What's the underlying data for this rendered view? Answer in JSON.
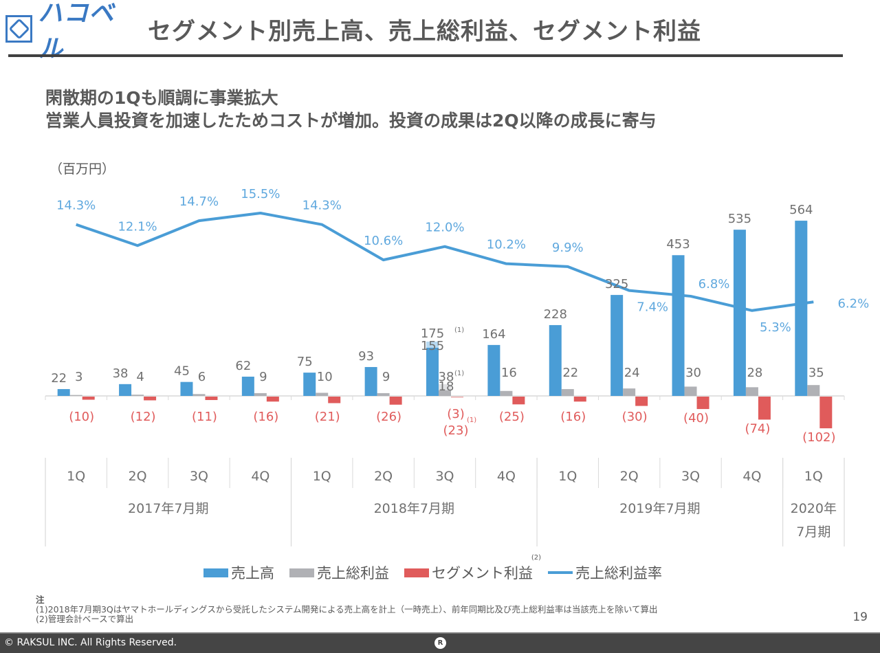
{
  "header": {
    "logo_text": "ハコベル",
    "title": "セグメント別売上高、売上総利益、セグメント利益"
  },
  "headline": {
    "line1": "閑散期の1Qも順調に事業拡大",
    "line2": "営業人員投資を加速したためコストが増加。投資の成果は2Q以降の成長に寄与"
  },
  "colors": {
    "revenue": "#4a9dd6",
    "revenue_onetime": "#b7d9f1",
    "gross_profit": "#b0b1b5",
    "gross_profit_onetime": "#e1e2e4",
    "segment_profit": "#e05b5b",
    "segment_profit_onetime": "#eaa2a2",
    "margin_line": "#4a9dd6",
    "margin_label": "#5fa8de",
    "value_label": "#707070",
    "negative_label": "#e05b5b"
  },
  "chart_data": {
    "type": "bar",
    "unit_label": "（百万円）",
    "categories": [
      "1Q",
      "2Q",
      "3Q",
      "4Q",
      "1Q",
      "2Q",
      "3Q",
      "4Q",
      "1Q",
      "2Q",
      "3Q",
      "4Q",
      "1Q"
    ],
    "fiscal_years": [
      {
        "label": "2017年7月期",
        "quarters": 4
      },
      {
        "label": "2018年7月期",
        "quarters": 4
      },
      {
        "label": "2019年7月期",
        "quarters": 4
      },
      {
        "label": "2020年\n7月期",
        "quarters": 1
      }
    ],
    "series": [
      {
        "name": "売上高",
        "kind": "bar",
        "values": [
          22,
          38,
          45,
          62,
          75,
          93,
          155,
          164,
          228,
          325,
          453,
          535,
          564
        ],
        "labels": [
          "22",
          "38",
          "45",
          "62",
          "75",
          "93",
          "155",
          "164",
          "228",
          "325",
          "453",
          "535",
          "564"
        ]
      },
      {
        "name": "売上総利益",
        "kind": "bar",
        "values": [
          3,
          4,
          6,
          9,
          10,
          9,
          18,
          16,
          22,
          24,
          30,
          28,
          35
        ],
        "labels": [
          "3",
          "4",
          "6",
          "9",
          "10",
          "9",
          "18",
          "16",
          "22",
          "24",
          "30",
          "28",
          "35"
        ]
      },
      {
        "name": "セグメント利益",
        "kind": "bar",
        "values": [
          -10,
          -12,
          -11,
          -16,
          -21,
          -26,
          -23,
          -25,
          -16,
          -30,
          -40,
          -74,
          -102
        ],
        "labels": [
          "(10)",
          "(12)",
          "(11)",
          "(16)",
          "(21)",
          "(26)",
          "(23)",
          "(25)",
          "(16)",
          "(30)",
          "(40)",
          "(74)",
          "(102)"
        ]
      },
      {
        "name": "売上総利益率",
        "kind": "line",
        "values": [
          14.3,
          12.1,
          14.7,
          15.5,
          14.3,
          10.6,
          12.0,
          10.2,
          9.9,
          7.4,
          6.8,
          5.3,
          6.2
        ],
        "labels": [
          "14.3%",
          "12.1%",
          "14.7%",
          "15.5%",
          "14.3%",
          "10.6%",
          "12.0%",
          "10.2%",
          "9.9%",
          "7.4%",
          "6.8%",
          "5.3%",
          "6.2%"
        ]
      }
    ],
    "one_time_adjustment": {
      "index": 6,
      "revenue_incl": 175,
      "revenue_incl_label": "175",
      "gross_profit_incl": 38,
      "gross_profit_incl_label": "38",
      "segment_profit_incl": -3,
      "segment_profit_incl_label": "(3)",
      "note_marker": "(1)"
    },
    "legend": [
      {
        "label": "売上高",
        "type": "bar"
      },
      {
        "label": "売上総利益",
        "type": "bar"
      },
      {
        "label": "セグメント利益",
        "type": "bar",
        "sup": "(2)"
      },
      {
        "label": "売上総利益率",
        "type": "line"
      }
    ],
    "ylim_bars": [
      -110,
      580
    ],
    "ylim_line": [
      0,
      16
    ],
    "grid": false,
    "legend_position": "bottom"
  },
  "notes": {
    "heading": "注",
    "items": [
      "(1)2018年7月期3Qはヤマトホールディングスから受託したシステム開発による売上高を計上（一時売上）、前年同期比及び売上総利益率は当該売上を除いて算出",
      "(2)管理会計ベースで算出"
    ]
  },
  "page_number": "19",
  "footer": {
    "copyright": "© RAKSUL INC. All Rights Reserved.",
    "mark": "R"
  }
}
